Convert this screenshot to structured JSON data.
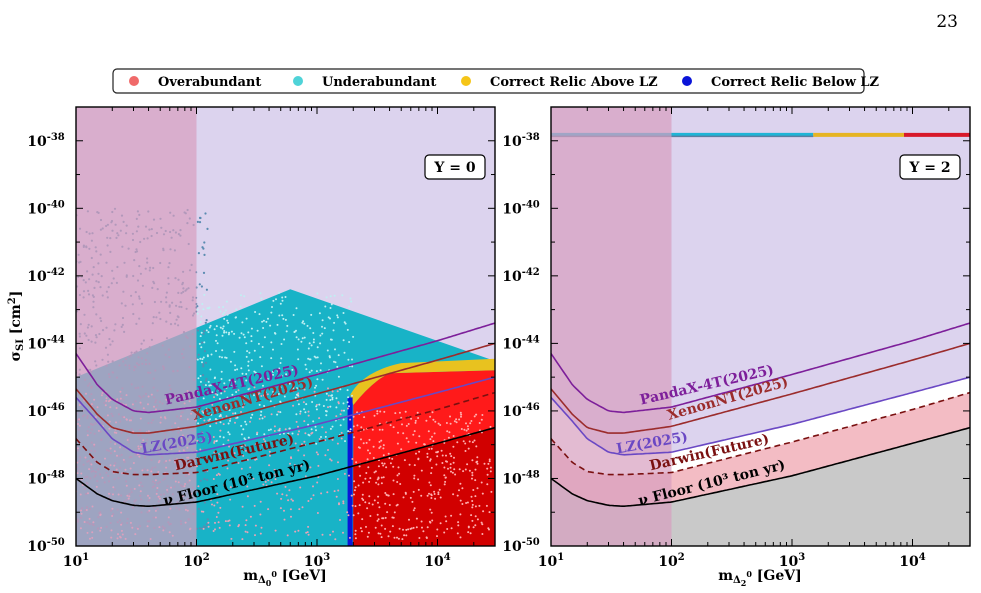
{
  "page_number": "23",
  "legend": [
    {
      "label": "Overabundant",
      "color": "#f06a6a"
    },
    {
      "label": "Underabundant",
      "color": "#4fd3d8"
    },
    {
      "label": "Correct Relic Above LZ",
      "color": "#f5c518"
    },
    {
      "label": "Correct Relic Below LZ",
      "color": "#0a14d8"
    }
  ],
  "colors": {
    "excluded_region": "#dcd3ee",
    "low_mass_band": "#d79ebf",
    "neutrino_floor_fill": "#c9c9c9",
    "darwin_fill": "#f3bcc4",
    "xenon": "#9b2c2c",
    "pandax": "#7d1f9a",
    "lz": "#6a48c4",
    "darwin": "#7a1010",
    "floor": "#000000"
  },
  "chart_data": [
    {
      "type": "scatter",
      "panel_label": "Y = 0",
      "xlabel": "m",
      "xlabel_sub": "Δ",
      "xlabel_sub2": "0",
      "xlabel_sup": "0",
      "xlabel_unit": " [GeV]",
      "ylabel": "σ",
      "ylabel_sub": "SI",
      "ylabel_unit": " [cm",
      "ylabel_sup": "2",
      "ylabel_close": "]",
      "xscale": "log",
      "yscale": "log",
      "xlim": [
        10,
        30000
      ],
      "ylim": [
        1e-50,
        1e-37
      ],
      "x_ticks": [
        "10^1",
        "10^2",
        "10^3",
        "10^4"
      ],
      "y_ticks": [
        "10^-50",
        "10^-48",
        "10^-46",
        "10^-44",
        "10^-42",
        "10^-40",
        "10^-38"
      ],
      "low_mass_band_xmax": 100,
      "underabundant_region": {
        "triangle_peak": [
          600,
          4e-43
        ],
        "left_edge_at_10": 1e-45,
        "right_end": [
          30000,
          3e-45
        ]
      },
      "correct_relic_below_lz_x": 1900,
      "overabundant_region_xmin": 2000,
      "correct_relic_above_lz_band": "upper edge of overabundant region, x 2000-30000"
    },
    {
      "type": "line",
      "panel_label": "Y = 2",
      "xlabel": "m",
      "xlabel_sub": "Δ",
      "xlabel_sub2": "2",
      "xlabel_sup": "0",
      "xlabel_unit": " [GeV]",
      "xscale": "log",
      "yscale": "log",
      "xlim": [
        10,
        30000
      ],
      "ylim": [
        1e-50,
        1e-37
      ],
      "x_ticks": [
        "10^1",
        "10^2",
        "10^3",
        "10^4"
      ],
      "y_ticks": [
        "10^-50",
        "10^-48",
        "10^-46",
        "10^-44",
        "10^-42",
        "10^-40",
        "10^-38"
      ],
      "low_mass_band_xmax": 100,
      "relic_line": {
        "y": 1.5e-38,
        "segments": [
          {
            "x0": 10,
            "x1": 1500,
            "color": "#1fb5d6",
            "category": "Underabundant"
          },
          {
            "x0": 1500,
            "x1": 8500,
            "color": "#e6b422",
            "category": "Correct Relic Above LZ"
          },
          {
            "x0": 8500,
            "x1": 30000,
            "color": "#d8182a",
            "category": "Overabundant"
          }
        ]
      }
    }
  ],
  "limit_curves": [
    {
      "name": "XenonNT(2025)",
      "key": "xenon",
      "points": [
        [
          10,
          4.5e-46
        ],
        [
          15,
          8e-47
        ],
        [
          20,
          3.2e-47
        ],
        [
          30,
          2.2e-47
        ],
        [
          40,
          2.2e-47
        ],
        [
          100,
          3.5e-47
        ],
        [
          1000,
          3.2e-46
        ],
        [
          10000,
          3.2e-45
        ],
        [
          30000,
          1e-44
        ]
      ]
    },
    {
      "name": "PandaX-4T(2025)",
      "key": "pandax",
      "points": [
        [
          10,
          5e-45
        ],
        [
          15,
          6e-46
        ],
        [
          20,
          2.2e-46
        ],
        [
          30,
          1e-46
        ],
        [
          40,
          9e-47
        ],
        [
          100,
          1.3e-46
        ],
        [
          1000,
          1.2e-45
        ],
        [
          10000,
          1.2e-44
        ],
        [
          30000,
          4e-44
        ]
      ]
    },
    {
      "name": "LZ(2025)",
      "key": "lz",
      "points": [
        [
          10,
          2.5e-46
        ],
        [
          15,
          5e-47
        ],
        [
          20,
          1.5e-47
        ],
        [
          30,
          6e-48
        ],
        [
          40,
          5e-48
        ],
        [
          100,
          6e-48
        ],
        [
          1000,
          4e-47
        ],
        [
          10000,
          3.5e-46
        ],
        [
          30000,
          1e-45
        ]
      ]
    },
    {
      "name": "Darwin(Future)",
      "key": "darwin",
      "points": [
        [
          10,
          1.5e-47
        ],
        [
          15,
          3e-48
        ],
        [
          20,
          1.6e-48
        ],
        [
          30,
          1.3e-48
        ],
        [
          40,
          1.3e-48
        ],
        [
          100,
          1.5e-48
        ],
        [
          1000,
          1.2e-47
        ],
        [
          10000,
          1.1e-46
        ],
        [
          30000,
          3.5e-46
        ]
      ]
    },
    {
      "name": "ν Floor (10³ ton yr)",
      "key": "floor",
      "points": [
        [
          10,
          1e-48
        ],
        [
          15,
          3.5e-49
        ],
        [
          20,
          2.2e-49
        ],
        [
          30,
          1.6e-49
        ],
        [
          40,
          1.5e-49
        ],
        [
          100,
          2e-49
        ],
        [
          1000,
          1.2e-48
        ],
        [
          10000,
          1.1e-47
        ],
        [
          30000,
          3.2e-47
        ]
      ]
    }
  ]
}
